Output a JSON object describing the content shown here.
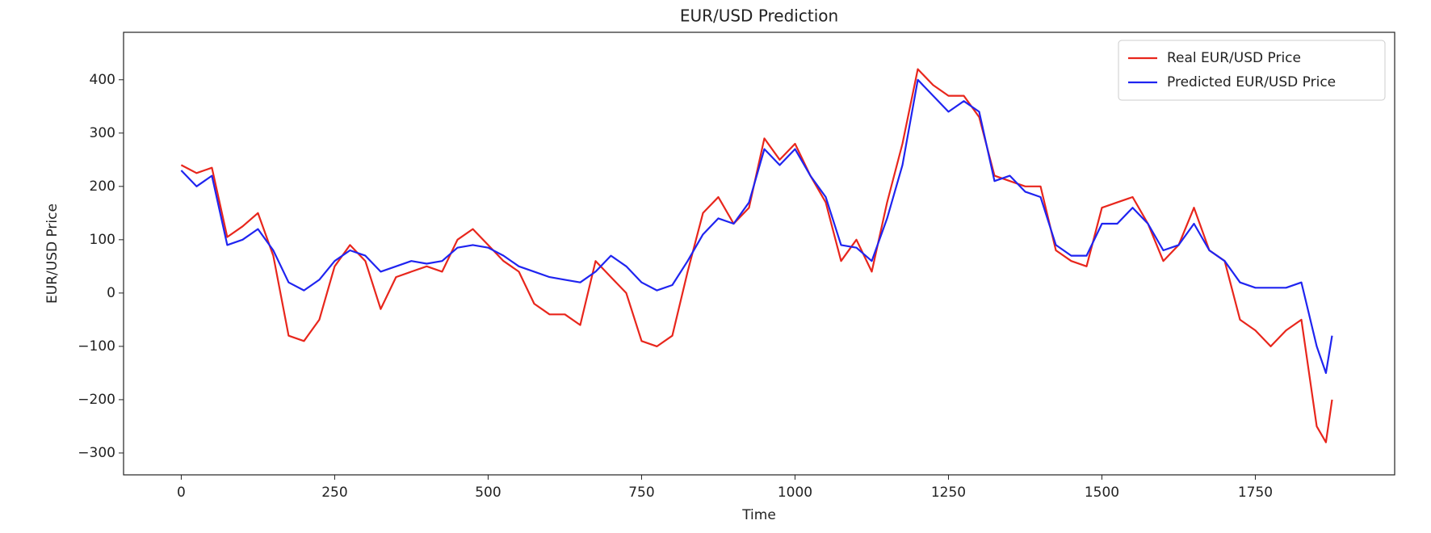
{
  "chart_data": {
    "type": "line",
    "title": "EUR/USD Prediction",
    "x_label": "Time",
    "y_label": "EUR/USD Price",
    "x": [
      0,
      25,
      50,
      75,
      100,
      125,
      150,
      175,
      200,
      225,
      250,
      275,
      300,
      325,
      350,
      375,
      400,
      425,
      450,
      475,
      500,
      525,
      550,
      575,
      600,
      625,
      650,
      675,
      700,
      725,
      750,
      775,
      800,
      825,
      850,
      875,
      900,
      925,
      950,
      975,
      1000,
      1025,
      1050,
      1075,
      1100,
      1125,
      1150,
      1175,
      1200,
      1225,
      1250,
      1275,
      1300,
      1325,
      1350,
      1375,
      1400,
      1425,
      1450,
      1475,
      1500,
      1525,
      1550,
      1575,
      1600,
      1625,
      1650,
      1675,
      1700,
      1725,
      1750,
      1775,
      1800,
      1825,
      1850,
      1865,
      1875
    ],
    "series": [
      {
        "name": "Real EUR/USD Price",
        "color": "#e8261c",
        "values": [
          240,
          225,
          235,
          105,
          125,
          150,
          70,
          -80,
          -90,
          -50,
          50,
          90,
          60,
          -30,
          30,
          40,
          50,
          40,
          100,
          120,
          90,
          60,
          40,
          -20,
          -40,
          -40,
          -60,
          60,
          30,
          0,
          -90,
          -100,
          -80,
          40,
          150,
          180,
          130,
          160,
          290,
          250,
          280,
          220,
          170,
          60,
          100,
          40,
          170,
          280,
          420,
          390,
          370,
          370,
          330,
          220,
          210,
          200,
          200,
          80,
          60,
          50,
          160,
          170,
          180,
          130,
          60,
          90,
          160,
          80,
          60,
          -50,
          -70,
          -100,
          -70,
          -50,
          -250,
          -280,
          -200
        ]
      },
      {
        "name": "Predicted EUR/USD Price",
        "color": "#1f24f0",
        "values": [
          230,
          200,
          220,
          90,
          100,
          120,
          80,
          20,
          5,
          25,
          60,
          80,
          70,
          40,
          50,
          60,
          55,
          60,
          85,
          90,
          85,
          70,
          50,
          40,
          30,
          25,
          20,
          40,
          70,
          50,
          20,
          5,
          15,
          60,
          110,
          140,
          130,
          170,
          270,
          240,
          270,
          220,
          180,
          90,
          85,
          60,
          140,
          240,
          400,
          370,
          340,
          360,
          340,
          210,
          220,
          190,
          180,
          90,
          70,
          70,
          130,
          130,
          160,
          130,
          80,
          90,
          130,
          80,
          60,
          20,
          10,
          10,
          10,
          20,
          -100,
          -150,
          -80
        ]
      }
    ],
    "xlim": [
      -94,
      1977
    ],
    "ylim": [
      -341,
      489
    ],
    "xticks": [
      0,
      250,
      500,
      750,
      1000,
      1250,
      1500,
      1750
    ],
    "yticks": [
      {
        "value": -300,
        "label": "−300"
      },
      {
        "value": -200,
        "label": "−200"
      },
      {
        "value": -100,
        "label": "−100"
      },
      0,
      100,
      200,
      300,
      400
    ],
    "legend": "upper right"
  }
}
